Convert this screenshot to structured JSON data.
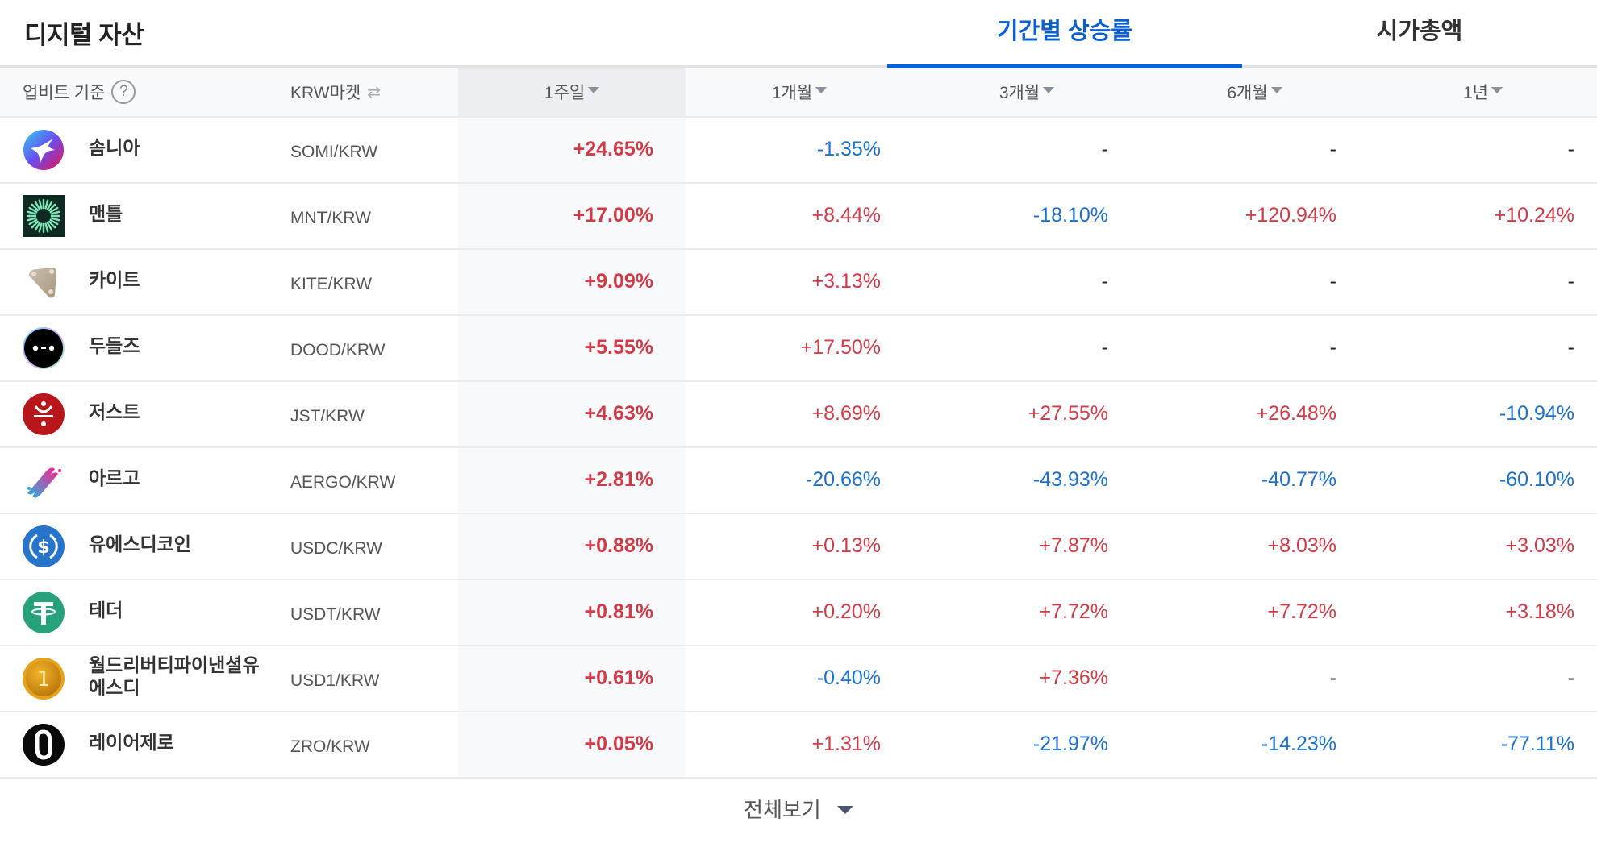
{
  "header": {
    "title": "디지털 자산",
    "tabs": [
      {
        "label": "기간별 상승률",
        "active": true
      },
      {
        "label": "시가총액",
        "active": false
      }
    ]
  },
  "table": {
    "columns": {
      "basis": "업비트 기준",
      "market": "KRW마켓",
      "periods": [
        "1주일",
        "1개월",
        "3개월",
        "6개월",
        "1년"
      ]
    },
    "sorted_column": "1주일",
    "rows": [
      {
        "name": "솜니아",
        "icon": "somnia-icon",
        "market": "SOMI/KRW",
        "values": [
          "+24.65%",
          "-1.35%",
          "-",
          "-",
          "-"
        ]
      },
      {
        "name": "맨틀",
        "icon": "mantle-icon",
        "market": "MNT/KRW",
        "values": [
          "+17.00%",
          "+8.44%",
          "-18.10%",
          "+120.94%",
          "+10.24%"
        ]
      },
      {
        "name": "카이트",
        "icon": "kite-icon",
        "market": "KITE/KRW",
        "values": [
          "+9.09%",
          "+3.13%",
          "-",
          "-",
          "-"
        ]
      },
      {
        "name": "두들즈",
        "icon": "doodles-icon",
        "market": "DOOD/KRW",
        "values": [
          "+5.55%",
          "+17.50%",
          "-",
          "-",
          "-"
        ]
      },
      {
        "name": "저스트",
        "icon": "just-icon",
        "market": "JST/KRW",
        "values": [
          "+4.63%",
          "+8.69%",
          "+27.55%",
          "+26.48%",
          "-10.94%"
        ]
      },
      {
        "name": "아르고",
        "icon": "aergo-icon",
        "market": "AERGO/KRW",
        "values": [
          "+2.81%",
          "-20.66%",
          "-43.93%",
          "-40.77%",
          "-60.10%"
        ]
      },
      {
        "name": "유에스디코인",
        "icon": "usdc-icon",
        "market": "USDC/KRW",
        "values": [
          "+0.88%",
          "+0.13%",
          "+7.87%",
          "+8.03%",
          "+3.03%"
        ]
      },
      {
        "name": "테더",
        "icon": "tether-icon",
        "market": "USDT/KRW",
        "values": [
          "+0.81%",
          "+0.20%",
          "+7.72%",
          "+7.72%",
          "+3.18%"
        ]
      },
      {
        "name": "월드리버티파이낸셜유에스디",
        "icon": "usd1-icon",
        "market": "USD1/KRW",
        "values": [
          "+0.61%",
          "-0.40%",
          "+7.36%",
          "-",
          "-"
        ]
      },
      {
        "name": "레이어제로",
        "icon": "layerzero-icon",
        "market": "ZRO/KRW",
        "values": [
          "+0.05%",
          "+1.31%",
          "-21.97%",
          "-14.23%",
          "-77.11%"
        ]
      }
    ]
  },
  "footer": {
    "more_label": "전체보기"
  },
  "colors": {
    "accent": "#0062df",
    "up": "#d13a46",
    "down": "#1b70cf"
  }
}
